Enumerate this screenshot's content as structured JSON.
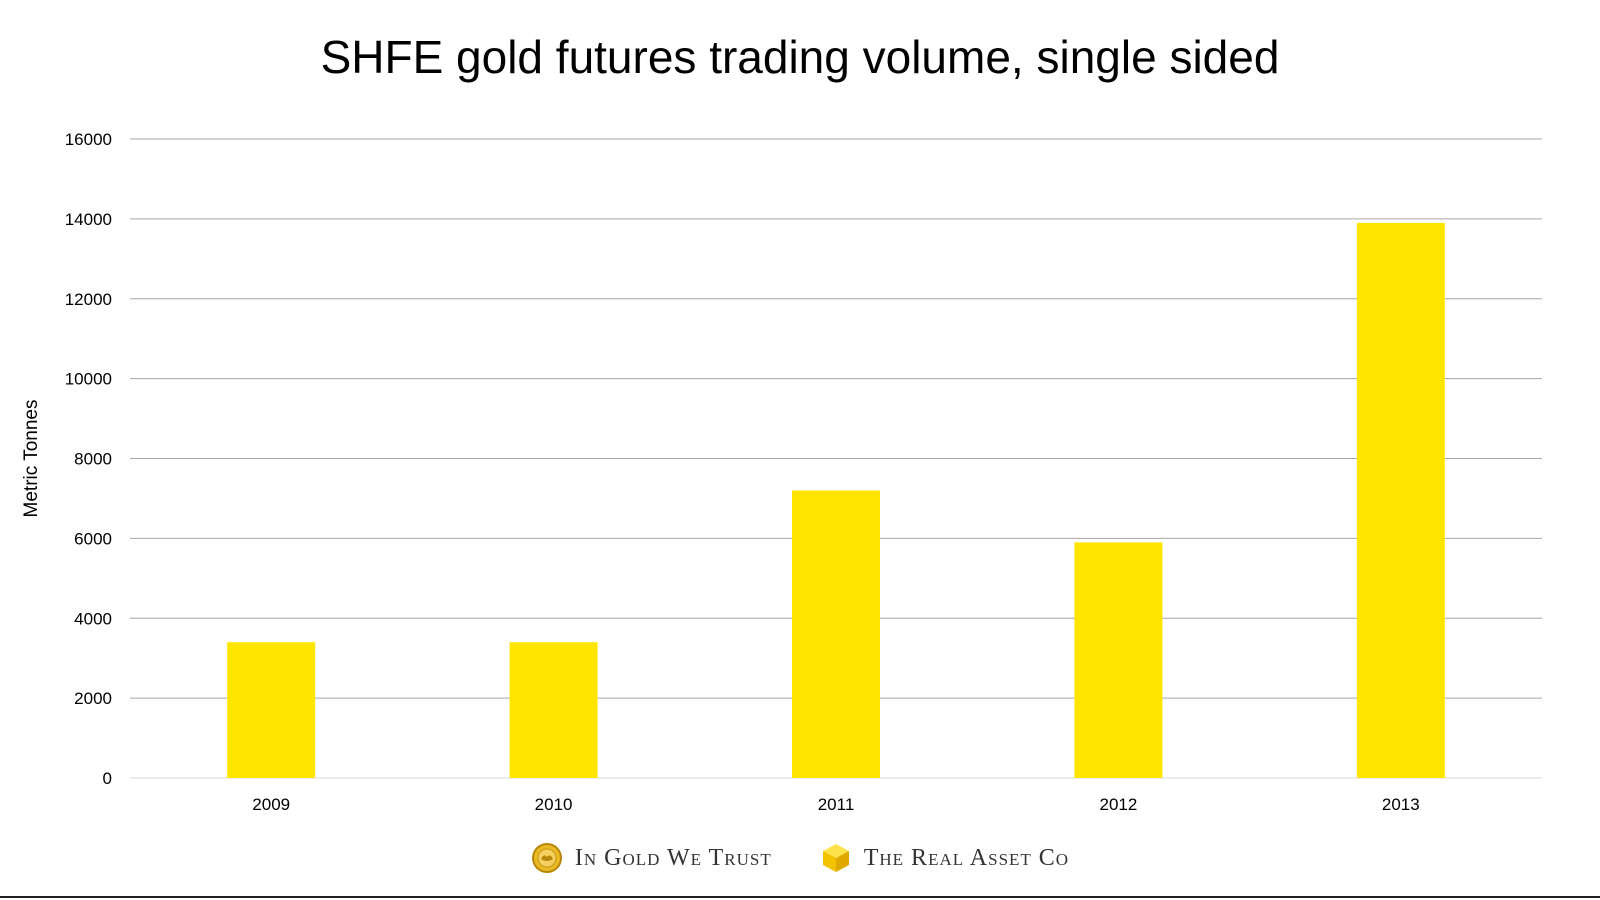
{
  "title": "SHFE gold futures trading volume, single sided",
  "chart_data": {
    "type": "bar",
    "title": "SHFE gold futures trading volume, single sided",
    "categories": [
      "2009",
      "2010",
      "2011",
      "2012",
      "2013"
    ],
    "values": [
      3400,
      3400,
      7200,
      5900,
      13900
    ],
    "xlabel": "",
    "ylabel": "Metric Tonnes",
    "ylim": [
      0,
      16000
    ],
    "yticks": [
      0,
      2000,
      4000,
      6000,
      8000,
      10000,
      12000,
      14000,
      16000
    ],
    "grid": true,
    "legend": "none",
    "bar_color": "#FFE500",
    "grid_color": "#A6A6A6"
  },
  "footer": {
    "brand_left": "In Gold We Trust",
    "brand_left_icon": "gold-coin-icon",
    "brand_right": "The Real Asset Co",
    "brand_right_icon": "gold-cube-icon"
  }
}
